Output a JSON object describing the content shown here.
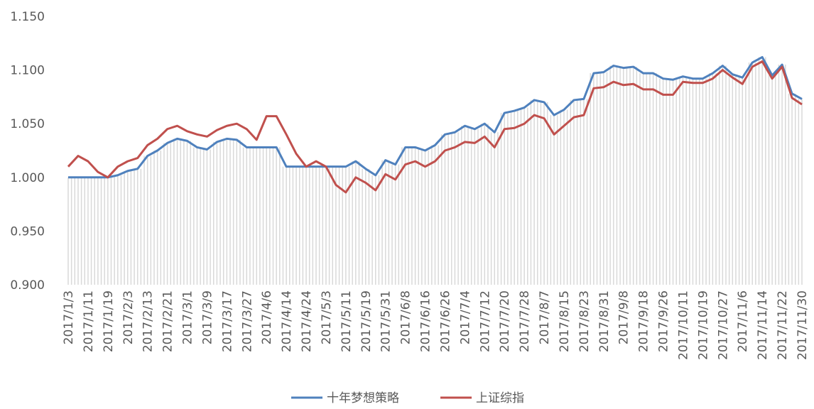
{
  "chart_data": {
    "type": "line",
    "categories": [
      "2017/1/3",
      null,
      "2017/1/11",
      null,
      "2017/1/19",
      null,
      "2017/2/3",
      null,
      "2017/2/13",
      null,
      "2017/2/21",
      null,
      "2017/3/1",
      null,
      "2017/3/9",
      null,
      "2017/3/17",
      null,
      "2017/3/27",
      null,
      "2017/4/6",
      null,
      "2017/4/14",
      null,
      "2017/4/24",
      null,
      "2017/5/3",
      null,
      "2017/5/11",
      null,
      "2017/5/19",
      null,
      "2017/5/31",
      null,
      "2017/6/8",
      null,
      "2017/6/16",
      null,
      "2017/6/26",
      null,
      "2017/7/4",
      null,
      "2017/7/12",
      null,
      "2017/7/20",
      null,
      "2017/7/28",
      null,
      "2017/8/7",
      null,
      "2017/8/15",
      null,
      "2017/8/23",
      null,
      "2017/8/31",
      null,
      "2017/9/8",
      null,
      "2017/9/18",
      null,
      "2017/9/26",
      null,
      "2017/10/11",
      null,
      "2017/10/19",
      null,
      "2017/10/27",
      null,
      "2017/11/6",
      null,
      "2017/11/14",
      null,
      "2017/11/22",
      null,
      "2017/11/30"
    ],
    "series": [
      {
        "name": "十年梦想策略",
        "color": "#4f81bd",
        "values": [
          1.0,
          1.0,
          1.0,
          1.0,
          1.0,
          1.002,
          1.006,
          1.008,
          1.02,
          1.025,
          1.032,
          1.036,
          1.034,
          1.028,
          1.026,
          1.033,
          1.036,
          1.035,
          1.028,
          1.028,
          1.028,
          1.028,
          1.01,
          1.01,
          1.01,
          1.01,
          1.01,
          1.01,
          1.01,
          1.015,
          1.008,
          1.002,
          1.016,
          1.012,
          1.028,
          1.028,
          1.025,
          1.03,
          1.04,
          1.042,
          1.048,
          1.045,
          1.05,
          1.042,
          1.06,
          1.062,
          1.065,
          1.072,
          1.07,
          1.058,
          1.063,
          1.072,
          1.073,
          1.097,
          1.098,
          1.104,
          1.102,
          1.103,
          1.097,
          1.097,
          1.092,
          1.091,
          1.094,
          1.092,
          1.092,
          1.097,
          1.104,
          1.096,
          1.093,
          1.107,
          1.112,
          1.095,
          1.105,
          1.078,
          1.073
        ]
      },
      {
        "name": "上证综指",
        "color": "#c0504d",
        "values": [
          1.01,
          1.02,
          1.015,
          1.005,
          1.0,
          1.01,
          1.015,
          1.018,
          1.03,
          1.036,
          1.045,
          1.048,
          1.043,
          1.04,
          1.038,
          1.044,
          1.048,
          1.05,
          1.045,
          1.035,
          1.057,
          1.057,
          1.04,
          1.022,
          1.01,
          1.015,
          1.01,
          0.993,
          0.986,
          1.0,
          0.995,
          0.988,
          1.003,
          0.998,
          1.012,
          1.015,
          1.01,
          1.015,
          1.025,
          1.028,
          1.033,
          1.032,
          1.038,
          1.028,
          1.045,
          1.046,
          1.05,
          1.058,
          1.055,
          1.04,
          1.048,
          1.056,
          1.058,
          1.083,
          1.084,
          1.089,
          1.086,
          1.087,
          1.082,
          1.082,
          1.077,
          1.077,
          1.089,
          1.088,
          1.088,
          1.092,
          1.1,
          1.093,
          1.087,
          1.103,
          1.108,
          1.092,
          1.103,
          1.074,
          1.068
        ]
      }
    ],
    "ylim": [
      0.9,
      1.15
    ],
    "yticks": [
      {
        "value": 0.9,
        "label": "0.900"
      },
      {
        "value": 0.95,
        "label": "0.950"
      },
      {
        "value": 1.0,
        "label": "1.000"
      },
      {
        "value": 1.05,
        "label": "1.050"
      },
      {
        "value": 1.1,
        "label": "1.100"
      },
      {
        "value": 1.15,
        "label": "1.150"
      }
    ],
    "legend": "bottom"
  }
}
